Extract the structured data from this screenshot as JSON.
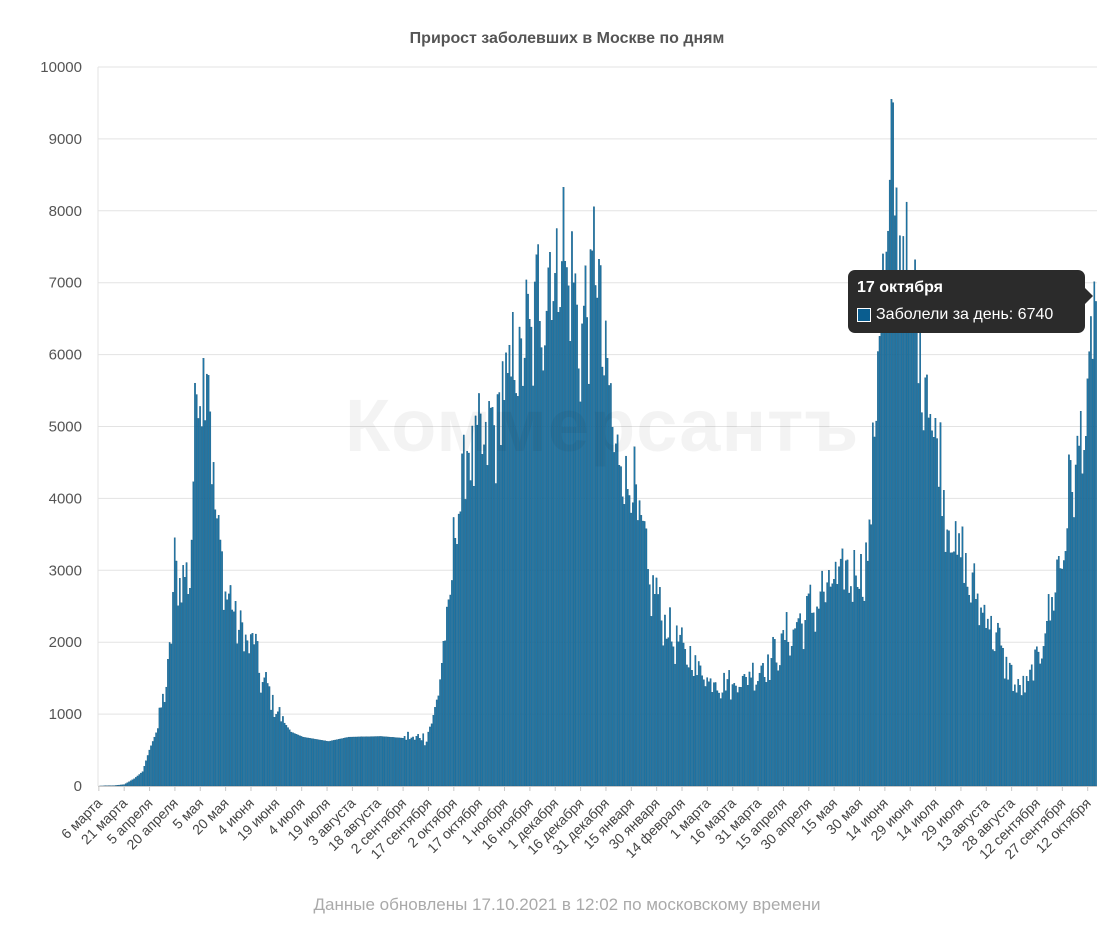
{
  "chart_data": {
    "type": "bar",
    "title": "Прирост заболевших в Москве по дням",
    "ylim": [
      0,
      10000
    ],
    "y_ticks": [
      0,
      1000,
      2000,
      3000,
      4000,
      5000,
      6000,
      7000,
      8000,
      9000,
      10000
    ],
    "grid": true,
    "x_start": "2020-03-06",
    "x_end": "2021-10-17",
    "x_tick_labels": [
      "6 марта",
      "21 марта",
      "5 апреля",
      "20 апреля",
      "5 мая",
      "20 мая",
      "4 июня",
      "19 июня",
      "4 июля",
      "19 июля",
      "3 августа",
      "18 августа",
      "2 сентября",
      "17 сентября",
      "2 октября",
      "17 октября",
      "1 ноября",
      "16 ноября",
      "1 декабря",
      "16 декабря",
      "31 декабря",
      "15 января",
      "30 января",
      "14 февраля",
      "1 марта",
      "16 марта",
      "31 марта",
      "15 апреля",
      "30 апреля",
      "15 мая",
      "30 мая",
      "14 июня",
      "29 июня",
      "14 июля",
      "29 июля",
      "13 августа",
      "28 августа",
      "12 сентября",
      "27 сентября",
      "12 октября"
    ],
    "series": [
      {
        "name": "Заболели за день",
        "color": "#1f77a8",
        "points": [
          [
            "2020-03-06",
            0
          ],
          [
            "2020-03-15",
            5
          ],
          [
            "2020-03-21",
            20
          ],
          [
            "2020-03-27",
            100
          ],
          [
            "2020-04-01",
            200
          ],
          [
            "2020-04-05",
            500
          ],
          [
            "2020-04-10",
            800
          ],
          [
            "2020-04-14",
            1300
          ],
          [
            "2020-04-18",
            2000
          ],
          [
            "2020-04-20",
            3100
          ],
          [
            "2020-04-25",
            2800
          ],
          [
            "2020-04-29",
            3000
          ],
          [
            "2020-05-01",
            4300
          ],
          [
            "2020-05-04",
            5800
          ],
          [
            "2020-05-06",
            5900
          ],
          [
            "2020-05-10",
            5800
          ],
          [
            "2020-05-12",
            4700
          ],
          [
            "2020-05-16",
            3300
          ],
          [
            "2020-05-20",
            2800
          ],
          [
            "2020-05-25",
            2400
          ],
          [
            "2020-06-01",
            2000
          ],
          [
            "2020-06-06",
            2000
          ],
          [
            "2020-06-10",
            1500
          ],
          [
            "2020-06-15",
            1300
          ],
          [
            "2020-06-20",
            1000
          ],
          [
            "2020-06-28",
            750
          ],
          [
            "2020-07-05",
            680
          ],
          [
            "2020-07-20",
            620
          ],
          [
            "2020-08-01",
            680
          ],
          [
            "2020-08-20",
            690
          ],
          [
            "2020-09-05",
            660
          ],
          [
            "2020-09-15",
            680
          ],
          [
            "2020-09-20",
            900
          ],
          [
            "2020-09-25",
            1700
          ],
          [
            "2020-09-29",
            2400
          ],
          [
            "2020-10-02",
            3300
          ],
          [
            "2020-10-07",
            4300
          ],
          [
            "2020-10-12",
            4700
          ],
          [
            "2020-10-17",
            4600
          ],
          [
            "2020-10-22",
            4800
          ],
          [
            "2020-10-27",
            5000
          ],
          [
            "2020-11-01",
            5500
          ],
          [
            "2020-11-06",
            5800
          ],
          [
            "2020-11-11",
            6000
          ],
          [
            "2020-11-16",
            6200
          ],
          [
            "2020-11-21",
            6700
          ],
          [
            "2020-11-26",
            7000
          ],
          [
            "2020-12-01",
            7200
          ],
          [
            "2020-12-06",
            7500
          ],
          [
            "2020-12-11",
            6900
          ],
          [
            "2020-12-16",
            6300
          ],
          [
            "2020-12-21",
            6500
          ],
          [
            "2020-12-24",
            7500
          ],
          [
            "2020-12-27",
            6800
          ],
          [
            "2021-01-01",
            5500
          ],
          [
            "2021-01-06",
            4700
          ],
          [
            "2021-01-11",
            4400
          ],
          [
            "2021-01-16",
            4200
          ],
          [
            "2021-01-21",
            3500
          ],
          [
            "2021-01-26",
            2800
          ],
          [
            "2021-01-31",
            2600
          ],
          [
            "2021-02-05",
            2200
          ],
          [
            "2021-02-14",
            1900
          ],
          [
            "2021-03-01",
            1500
          ],
          [
            "2021-03-16",
            1400
          ],
          [
            "2021-03-31",
            1600
          ],
          [
            "2021-04-10",
            1800
          ],
          [
            "2021-04-15",
            2000
          ],
          [
            "2021-04-30",
            2400
          ],
          [
            "2021-05-10",
            2700
          ],
          [
            "2021-05-20",
            2900
          ],
          [
            "2021-05-30",
            3000
          ],
          [
            "2021-06-05",
            3200
          ],
          [
            "2021-06-08",
            5300
          ],
          [
            "2021-06-11",
            6500
          ],
          [
            "2021-06-15",
            7300
          ],
          [
            "2021-06-19",
            8500
          ],
          [
            "2021-06-22",
            7800
          ],
          [
            "2021-06-26",
            7300
          ],
          [
            "2021-06-29",
            6800
          ],
          [
            "2021-07-03",
            6500
          ],
          [
            "2021-07-08",
            5800
          ],
          [
            "2021-07-13",
            5000
          ],
          [
            "2021-07-18",
            4300
          ],
          [
            "2021-07-23",
            3500
          ],
          [
            "2021-07-29",
            3200
          ],
          [
            "2021-08-05",
            2700
          ],
          [
            "2021-08-13",
            2400
          ],
          [
            "2021-08-20",
            2000
          ],
          [
            "2021-08-28",
            1500
          ],
          [
            "2021-09-03",
            1300
          ],
          [
            "2021-09-08",
            1500
          ],
          [
            "2021-09-12",
            1700
          ],
          [
            "2021-09-20",
            2500
          ],
          [
            "2021-09-27",
            3200
          ],
          [
            "2021-10-03",
            4300
          ],
          [
            "2021-10-08",
            4700
          ],
          [
            "2021-10-12",
            5200
          ],
          [
            "2021-10-15",
            6200
          ],
          [
            "2021-10-17",
            6740
          ]
        ]
      }
    ]
  },
  "footer": {
    "note": "Данные обновлены 17.10.2021 в 12:02 по московскому времени"
  },
  "watermark": {
    "text": "Коммерсантъ"
  },
  "tooltip": {
    "date": "17 октября",
    "label": "Заболели за день: 6740",
    "swatch_color": "#0a5d8f"
  }
}
